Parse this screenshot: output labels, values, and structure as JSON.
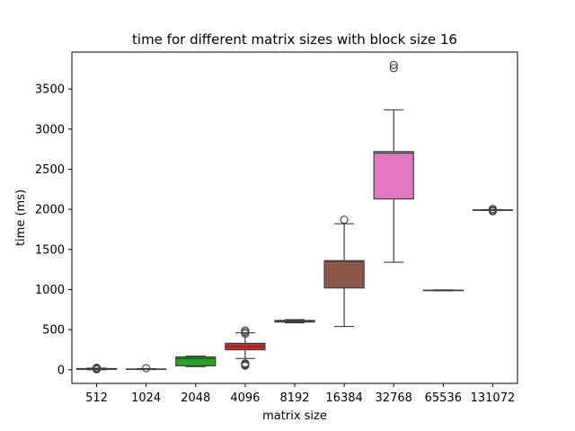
{
  "chart_data": {
    "type": "box",
    "title": "time for different matrix sizes with block size 16",
    "xlabel": "matrix size",
    "ylabel": "time (ms)",
    "ylim": [
      -170,
      3960
    ],
    "yticks": [
      0,
      500,
      1000,
      1500,
      2000,
      2500,
      3000,
      3500
    ],
    "ytick_labels": [
      "0",
      "500",
      "1000",
      "1500",
      "2000",
      "2500",
      "3000",
      "3500"
    ],
    "grid": false,
    "legend": "none",
    "categories": [
      "512",
      "1024",
      "2048",
      "4096",
      "8192",
      "16384",
      "32768",
      "65536",
      "131072"
    ],
    "boxes": [
      {
        "category": "512",
        "color": "#1f77b4",
        "whisker_low": 0,
        "q1": 5,
        "median": 10,
        "q3": 15,
        "whisker_high": 20,
        "outliers": [
          5,
          15,
          25
        ]
      },
      {
        "category": "1024",
        "color": "#ff7f0e",
        "whisker_low": 3,
        "q1": 6,
        "median": 8,
        "q3": 10,
        "whisker_high": 13,
        "outliers": [
          20
        ]
      },
      {
        "category": "2048",
        "color": "#2ca02c",
        "whisker_low": 40,
        "q1": 50,
        "median": 140,
        "q3": 160,
        "whisker_high": 170,
        "outliers": []
      },
      {
        "category": "4096",
        "color": "#d62728",
        "whisker_low": 140,
        "q1": 250,
        "median": 290,
        "q3": 330,
        "whisker_high": 460,
        "outliers": [
          50,
          60,
          70,
          80,
          450,
          470,
          490
        ]
      },
      {
        "category": "8192",
        "color": "#9467bd",
        "whisker_low": 585,
        "q1": 595,
        "median": 605,
        "q3": 615,
        "whisker_high": 625,
        "outliers": []
      },
      {
        "category": "16384",
        "color": "#8c564b",
        "whisker_low": 540,
        "q1": 1020,
        "median": 1350,
        "q3": 1360,
        "whisker_high": 1820,
        "outliers": [
          1870
        ]
      },
      {
        "category": "32768",
        "color": "#e377c2",
        "whisker_low": 1340,
        "q1": 2130,
        "median": 2700,
        "q3": 2720,
        "whisker_high": 3240,
        "outliers": [
          3760,
          3800
        ]
      },
      {
        "category": "65536",
        "color": "#7f7f7f",
        "whisker_low": 985,
        "q1": 988,
        "median": 990,
        "q3": 992,
        "whisker_high": 995,
        "outliers": []
      },
      {
        "category": "131072",
        "color": "#bcbd22",
        "whisker_low": 1985,
        "q1": 1988,
        "median": 1990,
        "q3": 1993,
        "whisker_high": 1996,
        "outliers": [
          1975,
          1990,
          2005
        ]
      }
    ]
  }
}
